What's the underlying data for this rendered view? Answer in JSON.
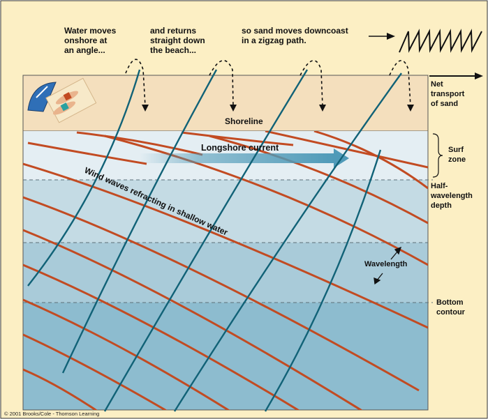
{
  "annotations": {
    "step1": [
      "Water moves",
      "onshore at",
      "an angle..."
    ],
    "step2": [
      "and returns",
      "straight down",
      "the beach..."
    ],
    "step3": [
      "so sand moves downcoast",
      "in a zigzag path."
    ]
  },
  "zones": {
    "shoreline": "Shoreline",
    "longshore_current": "Longshore current",
    "wind_waves": "Wind waves refracting in shallow water"
  },
  "side_labels": {
    "net_transport": [
      "Net",
      "transport",
      "of sand"
    ],
    "surf_zone": [
      "Surf",
      "zone"
    ],
    "half_wavelength": [
      "Half-",
      "wavelength",
      "depth"
    ],
    "wavelength": "Wavelength",
    "bottom_contour": [
      "Bottom",
      "contour"
    ]
  },
  "credit": "© 2001 Brooks/Cole - Thomson Learning",
  "colors": {
    "background": "#fcefc4",
    "beach": "#f4dfbd",
    "surf": "#e4eef3",
    "shallow": "#c4dbe4",
    "mid": "#a9cbd9",
    "deep": "#8dbccf",
    "wave_crest": "#c24b22",
    "swash": "#116277",
    "current_arrow": "#4f9ab8"
  }
}
